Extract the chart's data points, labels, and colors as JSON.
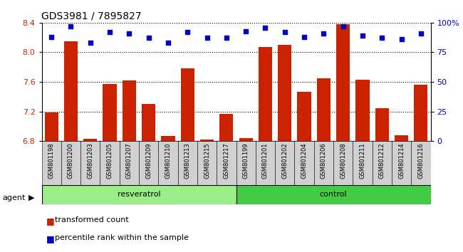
{
  "title": "GDS3981 / 7895827",
  "samples": [
    "GSM801198",
    "GSM801200",
    "GSM801203",
    "GSM801205",
    "GSM801207",
    "GSM801209",
    "GSM801210",
    "GSM801213",
    "GSM801215",
    "GSM801217",
    "GSM801199",
    "GSM801201",
    "GSM801202",
    "GSM801204",
    "GSM801206",
    "GSM801208",
    "GSM801211",
    "GSM801212",
    "GSM801214",
    "GSM801216"
  ],
  "transformed_count": [
    7.19,
    8.15,
    6.83,
    7.57,
    7.62,
    7.3,
    6.87,
    7.78,
    6.82,
    7.17,
    6.84,
    8.07,
    8.1,
    7.47,
    7.65,
    8.38,
    7.63,
    7.24,
    6.88,
    7.56
  ],
  "percentile_rank": [
    88,
    97,
    83,
    92,
    91,
    87,
    83,
    92,
    87,
    87,
    93,
    96,
    92,
    88,
    91,
    97,
    89,
    87,
    86,
    91
  ],
  "ylim_left": [
    6.8,
    8.4
  ],
  "ylim_right": [
    0,
    100
  ],
  "yticks_left": [
    6.8,
    7.2,
    7.6,
    8.0,
    8.4
  ],
  "yticks_right": [
    0,
    25,
    50,
    75,
    100
  ],
  "ytick_labels_right": [
    "0",
    "25",
    "50",
    "75",
    "100%"
  ],
  "bar_color": "#cc2200",
  "dot_color": "#0000cc",
  "resveratrol_color": "#99ee88",
  "control_color": "#44cc44",
  "agent_label": "agent",
  "legend_bar_label": "transformed count",
  "legend_dot_label": "percentile rank within the sample",
  "tick_label_color_left": "#cc2200",
  "tick_label_color_right": "#0000cc",
  "n_resveratrol": 10,
  "n_control": 10
}
